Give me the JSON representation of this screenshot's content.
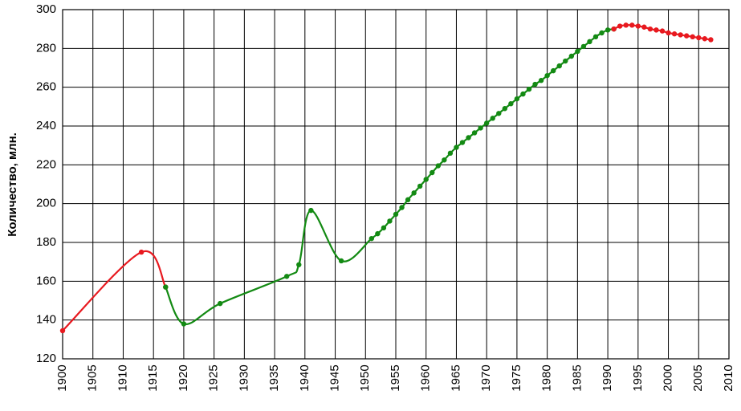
{
  "chart_data": {
    "type": "line",
    "ylabel": "Количество, млн.",
    "xlim": [
      1900,
      2010
    ],
    "xticks": [
      1900,
      1905,
      1910,
      1915,
      1920,
      1925,
      1930,
      1935,
      1940,
      1945,
      1950,
      1955,
      1960,
      1965,
      1970,
      1975,
      1980,
      1985,
      1990,
      1995,
      2000,
      2005,
      2010
    ],
    "ylim": [
      120,
      300
    ],
    "yticks": [
      120,
      140,
      160,
      180,
      200,
      220,
      240,
      260,
      280,
      300
    ],
    "grid": true,
    "series": [
      {
        "color": "#e8191f",
        "x": [
          1900,
          1913,
          1917
        ],
        "values": [
          134.5,
          175,
          157
        ]
      },
      {
        "color": "#138a13",
        "x": [
          1917,
          1920,
          1926,
          1937,
          1939,
          1941,
          1946,
          1951,
          1952,
          1953,
          1954,
          1955,
          1956,
          1957,
          1958,
          1959,
          1960,
          1961,
          1962,
          1963,
          1964,
          1965,
          1966,
          1967,
          1968,
          1969,
          1970,
          1971,
          1972,
          1973,
          1974,
          1975,
          1976,
          1977,
          1978,
          1979,
          1980,
          1981,
          1982,
          1983,
          1984,
          1985,
          1986,
          1987,
          1988,
          1989,
          1990,
          1991
        ],
        "values": [
          157,
          138,
          148.5,
          162.5,
          168.5,
          196.5,
          170.5,
          182,
          184.5,
          187.5,
          191,
          194.5,
          198,
          202,
          205.5,
          209,
          212.5,
          216,
          219.5,
          222.5,
          226,
          229,
          231.5,
          234,
          236.5,
          239,
          241.5,
          244,
          246.5,
          249,
          251.5,
          254,
          256.5,
          259,
          261.5,
          263.5,
          266,
          268.5,
          271,
          273.5,
          276,
          278.5,
          281,
          283.5,
          286,
          288,
          289.5,
          290
        ]
      },
      {
        "color": "#e8191f",
        "x": [
          1991,
          1992,
          1993,
          1994,
          1995,
          1996,
          1997,
          1998,
          1999,
          2000,
          2001,
          2002,
          2003,
          2004,
          2005,
          2006,
          2007
        ],
        "values": [
          290,
          291.5,
          292,
          292,
          291.5,
          291,
          290,
          289.5,
          289,
          288,
          287.5,
          287,
          286.5,
          286,
          285.5,
          285,
          284.5
        ]
      }
    ]
  }
}
